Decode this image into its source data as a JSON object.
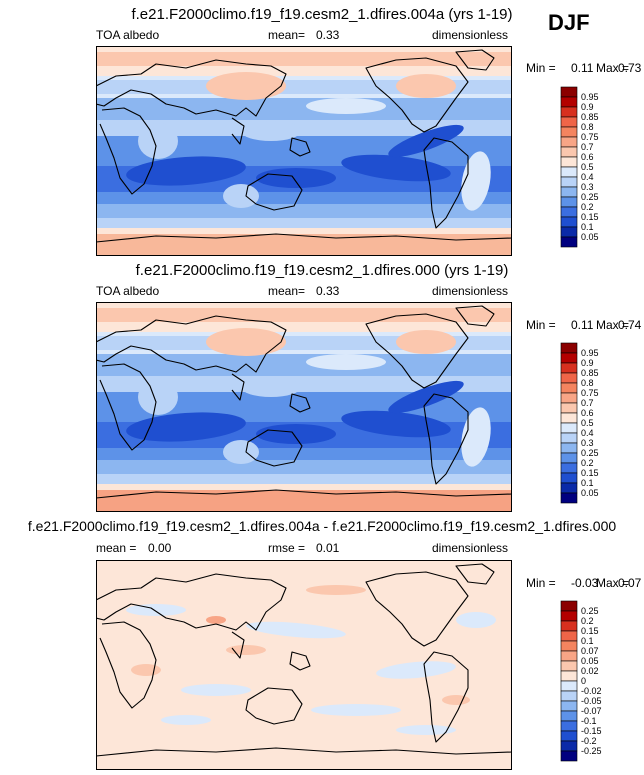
{
  "season": "DJF",
  "chart_data": [
    {
      "type": "heatmap",
      "title": "f.e21.F2000climo.f19_f19.cesm2_1.dfires.004a (yrs 1-19)",
      "variable": "TOA albedo",
      "mean_label": "mean=",
      "mean_value": "0.33",
      "units": "dimensionless",
      "min_label": "Min =",
      "min_value": "0.11",
      "max_label": "Max =",
      "max_value": "0.73",
      "levels": [
        "0.95",
        "0.9",
        "0.85",
        "0.8",
        "0.75",
        "0.7",
        "0.6",
        "0.5",
        "0.4",
        "0.3",
        "0.25",
        "0.2",
        "0.15",
        "0.1",
        "0.05"
      ],
      "level_colors": [
        "#8b0000",
        "#b30000",
        "#d7301f",
        "#ef6548",
        "#f4845f",
        "#f8a586",
        "#fbc7ae",
        "#fde6d8",
        "#dbe9fb",
        "#b9d3f7",
        "#8cb6f0",
        "#5d92e8",
        "#3b6ee0",
        "#1f4fd0",
        "#0a2aa8",
        "#00007f"
      ]
    },
    {
      "type": "heatmap",
      "title": "f.e21.F2000climo.f19_f19.cesm2_1.dfires.000 (yrs 1-19)",
      "variable": "TOA albedo",
      "mean_label": "mean=",
      "mean_value": "0.33",
      "units": "dimensionless",
      "min_label": "Min =",
      "min_value": "0.11",
      "max_label": "Max =",
      "max_value": "0.74",
      "levels": [
        "0.95",
        "0.9",
        "0.85",
        "0.8",
        "0.75",
        "0.7",
        "0.6",
        "0.5",
        "0.4",
        "0.3",
        "0.25",
        "0.2",
        "0.15",
        "0.1",
        "0.05"
      ],
      "level_colors": [
        "#8b0000",
        "#b30000",
        "#d7301f",
        "#ef6548",
        "#f4845f",
        "#f8a586",
        "#fbc7ae",
        "#fde6d8",
        "#dbe9fb",
        "#b9d3f7",
        "#8cb6f0",
        "#5d92e8",
        "#3b6ee0",
        "#1f4fd0",
        "#0a2aa8",
        "#00007f"
      ]
    },
    {
      "type": "heatmap",
      "title": "f.e21.F2000climo.f19_f19.cesm2_1.dfires.004a - f.e21.F2000climo.f19_f19.cesm2_1.dfires.000",
      "mean_label": "mean =",
      "mean_value": "0.00",
      "rmse_label": "rmse =",
      "rmse_value": "0.01",
      "units": "dimensionless",
      "min_label": "Min =",
      "min_value": "-0.03",
      "max_label": "Max =",
      "max_value": "0.07",
      "levels": [
        "0.25",
        "0.2",
        "0.15",
        "0.1",
        "0.07",
        "0.05",
        "0.02",
        "0",
        "-0.02",
        "-0.05",
        "-0.07",
        "-0.1",
        "-0.15",
        "-0.2",
        "-0.25"
      ],
      "level_colors": [
        "#8b0000",
        "#b30000",
        "#d7301f",
        "#ef6548",
        "#f4845f",
        "#f8a586",
        "#fbc7ae",
        "#fde6d8",
        "#dbe9fb",
        "#b9d3f7",
        "#8cb6f0",
        "#5d92e8",
        "#3b6ee0",
        "#1f4fd0",
        "#0a2aa8",
        "#00007f"
      ]
    }
  ]
}
